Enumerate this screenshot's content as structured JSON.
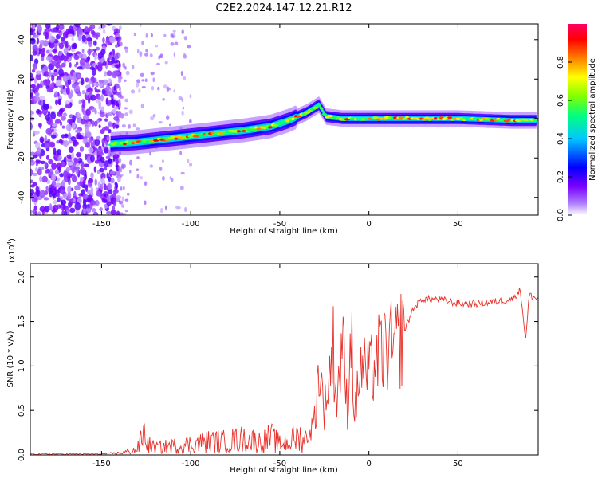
{
  "title": "C2E2.2024.147.12.21.R12",
  "chart_data": [
    {
      "type": "heatmap",
      "xlabel": "Height of straight line (km)",
      "ylabel": "Frequency (Hz)",
      "xlim": [
        -190,
        95
      ],
      "ylim": [
        -49,
        48
      ],
      "x_ticks": [
        -150,
        -100,
        -50,
        0,
        50
      ],
      "y_ticks": [
        -40,
        -20,
        0,
        20,
        40
      ],
      "colorbar": {
        "label": "Normalized spectral amplitude",
        "range": [
          0,
          1
        ],
        "ticks": [
          0.0,
          0.2,
          0.4,
          0.6,
          0.8
        ],
        "colormap": [
          "#ffffff",
          "#7a00ff",
          "#0000ff",
          "#00c8ff",
          "#00ff80",
          "#80ff00",
          "#ffff00",
          "#ff8000",
          "#ff0000",
          "#ff0066"
        ]
      },
      "ridge": {
        "x": [
          -145,
          -130,
          -110,
          -90,
          -70,
          -55,
          -45,
          -35,
          -28,
          -24,
          -15,
          0,
          20,
          50,
          80,
          94
        ],
        "y": [
          -13,
          -12,
          -10,
          -8,
          -6,
          -4,
          -1,
          3,
          7,
          1,
          0,
          0,
          0,
          0,
          -1,
          -1
        ]
      },
      "noise_region_x": [
        -190,
        -140
      ]
    },
    {
      "type": "line",
      "xlabel": "Height of straight line (km)",
      "ylabel": "SNR (10 * v/v)",
      "scale_label": "(x10",
      "scale_exp": "4",
      "scale_close": ")",
      "xlim": [
        -190,
        95
      ],
      "ylim": [
        0,
        2.15
      ],
      "x_ticks": [
        -150,
        -100,
        -50,
        0,
        50
      ],
      "y_ticks": [
        0.0,
        0.5,
        1.0,
        1.5,
        2.0
      ],
      "color": "#e8312a",
      "series": [
        {
          "x": [
            -190,
            -150,
            -140,
            -130,
            -126,
            -124,
            -120,
            -110,
            -100,
            -90,
            -80,
            -70,
            -60,
            -55,
            -50,
            -45,
            -40,
            -35,
            -32,
            -30,
            -28,
            -25,
            -20,
            -18,
            -15,
            -12,
            -10,
            -8,
            -5,
            0,
            5,
            10,
            15,
            20,
            25,
            30,
            40,
            50,
            60,
            70,
            80,
            85,
            88,
            90,
            95
          ],
          "y": [
            0.01,
            0.01,
            0.02,
            0.06,
            0.25,
            0.12,
            0.08,
            0.1,
            0.12,
            0.15,
            0.15,
            0.18,
            0.14,
            0.2,
            0.12,
            0.15,
            0.2,
            0.18,
            0.3,
            0.45,
            1.0,
            0.5,
            1.2,
            0.6,
            1.3,
            0.5,
            1.5,
            0.4,
            1.0,
            0.9,
            1.1,
            1.2,
            1.2,
            1.4,
            1.65,
            1.75,
            1.75,
            1.7,
            1.7,
            1.72,
            1.75,
            1.85,
            1.3,
            1.8,
            1.75
          ]
        }
      ]
    }
  ]
}
